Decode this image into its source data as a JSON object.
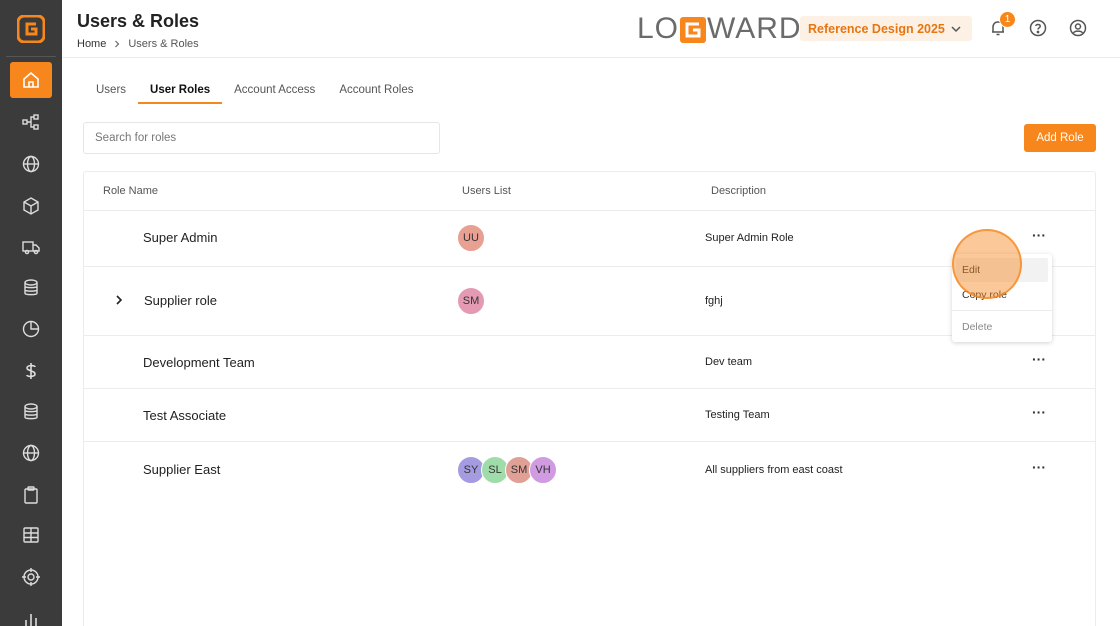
{
  "header": {
    "title": "Users & Roles",
    "breadcrumb": [
      "Home",
      "Users & Roles"
    ],
    "brand": {
      "pre": "LO",
      "post": "WARD"
    },
    "project_select": "Reference Design 2025",
    "notification_count": "1"
  },
  "sidebar": {
    "items": [
      {
        "icon": "home-icon",
        "active": true
      },
      {
        "icon": "workflow-icon"
      },
      {
        "icon": "globe-icon"
      },
      {
        "icon": "package-icon"
      },
      {
        "icon": "truck-icon"
      },
      {
        "icon": "database-icon"
      },
      {
        "icon": "pie-chart-icon"
      },
      {
        "icon": "dollar-icon"
      },
      {
        "icon": "database-icon"
      },
      {
        "icon": "globe-icon"
      },
      {
        "icon": "clipboard-icon"
      },
      {
        "icon": "table-icon"
      },
      {
        "icon": "target-icon"
      },
      {
        "icon": "bar-chart-icon"
      }
    ]
  },
  "tabs": [
    {
      "label": "Users"
    },
    {
      "label": "User Roles",
      "active": true
    },
    {
      "label": "Account Access"
    },
    {
      "label": "Account Roles"
    }
  ],
  "search": {
    "placeholder": "Search for roles"
  },
  "add_role_label": "Add Role",
  "table": {
    "headers": [
      "Role Name",
      "Users List",
      "Description"
    ],
    "rows": [
      {
        "name": "Super Admin",
        "users": [
          {
            "initials": "UU",
            "color": "#e8a092"
          }
        ],
        "description": "Super Admin Role"
      },
      {
        "name": "Supplier role",
        "expandable": true,
        "users": [
          {
            "initials": "SM",
            "color": "#e59ab4"
          }
        ],
        "description": "fghj"
      },
      {
        "name": "Development Team",
        "users": [],
        "description": "Dev team"
      },
      {
        "name": "Test Associate",
        "users": [],
        "description": "Testing Team"
      },
      {
        "name": "Supplier East",
        "users": [
          {
            "initials": "SY",
            "color": "#a49be0"
          },
          {
            "initials": "SL",
            "color": "#9fdcaa"
          },
          {
            "initials": "SM",
            "color": "#e0a096"
          },
          {
            "initials": "VH",
            "color": "#d09be0"
          }
        ],
        "description": "All suppliers from east coast"
      }
    ]
  },
  "row_menu": {
    "items": [
      "Edit",
      "Copy role",
      "Delete"
    ]
  },
  "colors": {
    "accent": "#f7861c",
    "sidebar": "#3b3b3b"
  }
}
